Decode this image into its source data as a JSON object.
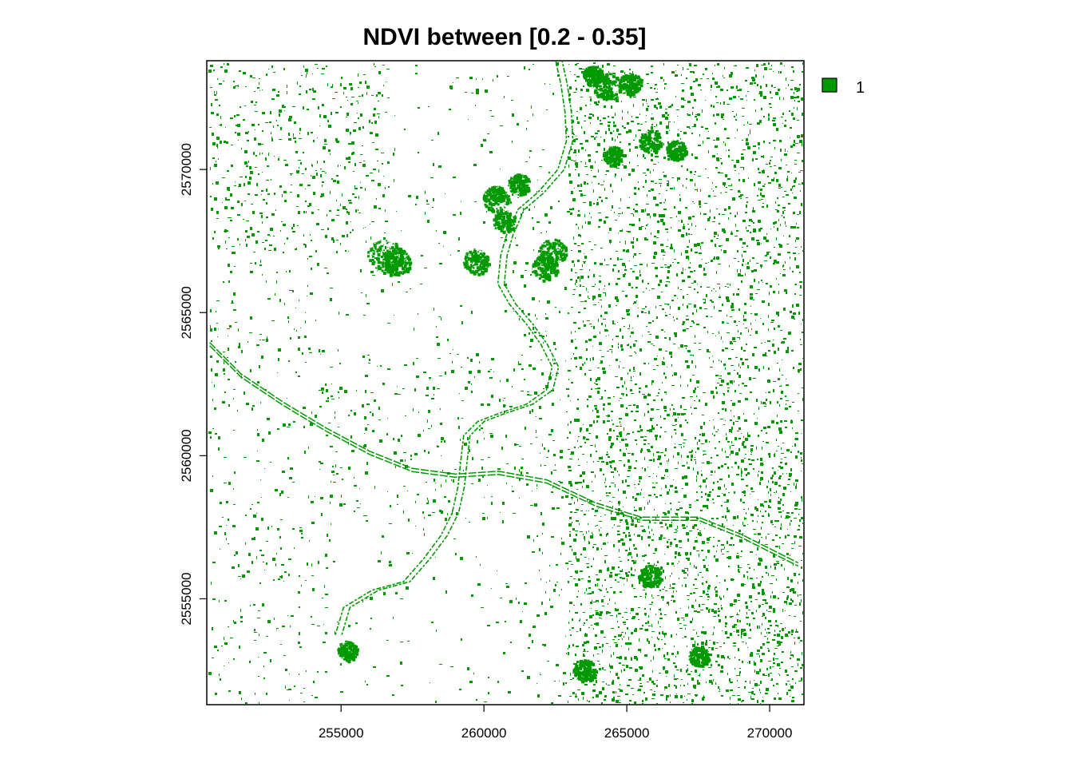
{
  "title": "NDVI between [0.2 - 0.35]",
  "colors": {
    "vegetation": "#009900",
    "background": "#ffffff",
    "frame": "#000000"
  },
  "legend": {
    "placement": "top-right outside",
    "items": [
      {
        "label": "1",
        "color": "#009900"
      }
    ]
  },
  "chart_data": {
    "type": "heatmap",
    "title": "NDVI between [0.2 - 0.35]",
    "xlim": [
      250300,
      271200
    ],
    "ylim": [
      2551300,
      2573800
    ],
    "x_ticks": [
      255000,
      260000,
      265000,
      270000
    ],
    "x_tick_labels": [
      "255000",
      "260000",
      "265000",
      "270000"
    ],
    "y_ticks": [
      2555000,
      2560000,
      2565000,
      2570000
    ],
    "y_tick_labels": [
      "2555000",
      "2560000",
      "2565000",
      "2570000"
    ],
    "classes": [
      {
        "value": 1,
        "label": "1",
        "color": "#009900"
      }
    ],
    "river_path": [
      [
        262600,
        2573900
      ],
      [
        262800,
        2573000
      ],
      [
        262950,
        2572000
      ],
      [
        263000,
        2571000
      ],
      [
        262700,
        2570000
      ],
      [
        262000,
        2569200
      ],
      [
        261300,
        2568600
      ],
      [
        260900,
        2567700
      ],
      [
        260700,
        2567000
      ],
      [
        260600,
        2566000
      ],
      [
        261000,
        2565300
      ],
      [
        261600,
        2564600
      ],
      [
        262100,
        2563900
      ],
      [
        262500,
        2563100
      ],
      [
        262300,
        2562300
      ],
      [
        261600,
        2561800
      ],
      [
        260700,
        2561500
      ],
      [
        259900,
        2561200
      ],
      [
        259400,
        2560700
      ],
      [
        259300,
        2559800
      ],
      [
        259200,
        2558900
      ],
      [
        259000,
        2558000
      ],
      [
        258600,
        2557200
      ],
      [
        258000,
        2556400
      ],
      [
        257300,
        2555600
      ],
      [
        256200,
        2555300
      ],
      [
        255200,
        2554700
      ],
      [
        254900,
        2553700
      ]
    ],
    "road_path": [
      [
        250400,
        2563900
      ],
      [
        251500,
        2562800
      ],
      [
        253000,
        2561800
      ],
      [
        254500,
        2560900
      ],
      [
        256000,
        2560100
      ],
      [
        257500,
        2559500
      ],
      [
        259000,
        2559300
      ],
      [
        260500,
        2559400
      ],
      [
        262200,
        2559100
      ],
      [
        263900,
        2558300
      ],
      [
        265500,
        2557800
      ],
      [
        267500,
        2557800
      ],
      [
        269000,
        2557200
      ],
      [
        271000,
        2556200
      ]
    ],
    "dense_patches": [
      [
        256500,
        2567000,
        600
      ],
      [
        256900,
        2566800,
        500
      ],
      [
        259700,
        2566800,
        450
      ],
      [
        260400,
        2569000,
        450
      ],
      [
        260700,
        2568200,
        400
      ],
      [
        261200,
        2569500,
        380
      ],
      [
        262400,
        2567100,
        500
      ],
      [
        262100,
        2566600,
        450
      ],
      [
        264300,
        2572900,
        500
      ],
      [
        265100,
        2573000,
        400
      ],
      [
        263800,
        2573300,
        350
      ],
      [
        265800,
        2571000,
        400
      ],
      [
        266700,
        2570700,
        350
      ],
      [
        264500,
        2570500,
        350
      ],
      [
        265800,
        2555800,
        400
      ],
      [
        267500,
        2553000,
        350
      ],
      [
        263500,
        2552500,
        400
      ],
      [
        255200,
        2553200,
        350
      ]
    ]
  }
}
